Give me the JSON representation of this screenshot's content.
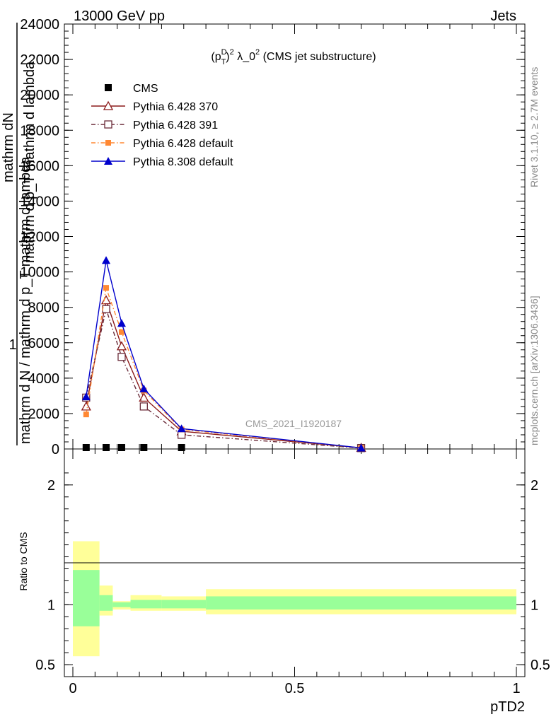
{
  "header": {
    "left": "13000 GeV pp",
    "right": "Jets"
  },
  "side_labels": {
    "rivet": "Rivet 3.1.10, ≥ 2.7M events",
    "mcplots": "mcplots.cern.ch [arXiv:1306.3436]"
  },
  "chart_data": {
    "type": "line",
    "title_parts": {
      "p": "(p",
      "sup1": "D",
      "sub1": "T",
      "rest": ")",
      "sup2": "2",
      "mid": " λ_0",
      "sup3": "2",
      "tail": " (CMS jet substructure)"
    },
    "watermark": "CMS_2021_I1920187",
    "ylabel_top": "1",
    "ylabel_lines": [
      "mathrm d N / mathrm d p_T mathrm d lambda",
      "mathrm dN",
      "mathrm d p_T mathrm d lambda"
    ],
    "xlabel": "pTD2",
    "ratio_ylabel": "Ratio to CMS",
    "xlim": [
      0,
      1
    ],
    "ylim": [
      0,
      24000
    ],
    "ratio_ylim": [
      0.4,
      2.3
    ],
    "x_ticks": [
      "0",
      "0.5",
      "1"
    ],
    "y_ticks": [
      "0",
      "2000",
      "4000",
      "6000",
      "8000",
      "10000",
      "12000",
      "14000",
      "16000",
      "18000",
      "20000",
      "22000",
      "24000"
    ],
    "ratio_ticks": [
      "0.5",
      "1",
      "2"
    ],
    "bins": [
      [
        0.0,
        0.06
      ],
      [
        0.06,
        0.09
      ],
      [
        0.09,
        0.13
      ],
      [
        0.13,
        0.2
      ],
      [
        0.2,
        0.3
      ],
      [
        0.3,
        1.0
      ]
    ],
    "x": [
      0.03,
      0.075,
      0.11,
      0.16,
      0.245,
      0.65
    ],
    "series": [
      {
        "name": "CMS",
        "color": "#000000",
        "marker": "square",
        "values": [
          0.5,
          0.5,
          0.5,
          0.5,
          0.5,
          0.4
        ]
      },
      {
        "name": "Pythia 6.428 370",
        "color": "#8b1a1a",
        "marker": "open-triangle",
        "dash": "solid",
        "values": [
          2400,
          8400,
          5800,
          2900,
          1000,
          60
        ]
      },
      {
        "name": "Pythia 6.428 391",
        "color": "#6b2c3a",
        "marker": "open-square",
        "dash": "dashdot",
        "values": [
          2900,
          7900,
          5200,
          2400,
          800,
          50
        ]
      },
      {
        "name": "Pythia 6.428 default",
        "color": "#ff8833",
        "marker": "filled-square",
        "dash": "dashdot",
        "values": [
          1950,
          9100,
          6600,
          3300,
          1100,
          60
        ]
      },
      {
        "name": "Pythia 8.308 default",
        "color": "#0000cc",
        "marker": "filled-triangle",
        "dash": "solid",
        "values": [
          2950,
          10650,
          7100,
          3400,
          1150,
          60
        ]
      }
    ],
    "ratio_bands": {
      "yellow": [
        [
          0.57,
          1.53
        ],
        [
          0.91,
          1.16
        ],
        [
          0.96,
          1.03
        ],
        [
          0.95,
          1.08
        ],
        [
          0.95,
          1.07
        ],
        [
          0.92,
          1.13
        ]
      ],
      "green": [
        [
          0.82,
          1.29
        ],
        [
          0.95,
          1.08
        ],
        [
          0.98,
          1.02
        ],
        [
          0.97,
          1.04
        ],
        [
          0.97,
          1.04
        ],
        [
          0.96,
          1.07
        ]
      ],
      "yellow_color": "#ffff99",
      "green_color": "#99ff99"
    }
  }
}
